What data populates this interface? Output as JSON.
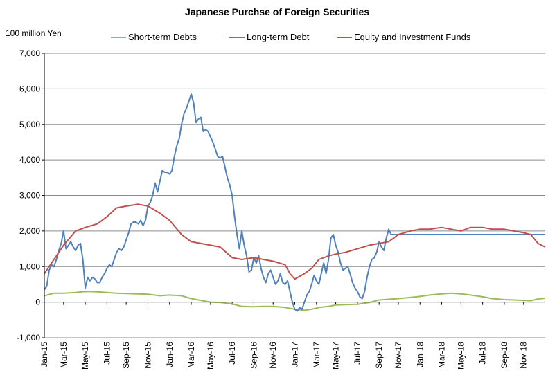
{
  "chart_data": {
    "type": "line",
    "title": "Japanese Purchse of Foreign Securities",
    "ylabel": "100 million Yen",
    "xlabel": "",
    "ylim": [
      -1000,
      7000
    ],
    "yticks": [
      -1000,
      0,
      1000,
      2000,
      3000,
      4000,
      5000,
      6000,
      7000
    ],
    "ytick_labels": [
      "-1,000",
      "0",
      "1,000",
      "2,000",
      "3,000",
      "4,000",
      "5,000",
      "6,000",
      "7,000"
    ],
    "grid": true,
    "legend_position": "top",
    "x_unit": "weeks since Jan-15",
    "xlim": [
      0,
      208
    ],
    "xticks": [
      {
        "label": "Jan-15",
        "x": 0
      },
      {
        "label": "Mar-15",
        "x": 8
      },
      {
        "label": "May-15",
        "x": 17
      },
      {
        "label": "Jul-15",
        "x": 26
      },
      {
        "label": "Sep-15",
        "x": 34
      },
      {
        "label": "Nov-15",
        "x": 43
      },
      {
        "label": "Jan-16",
        "x": 52
      },
      {
        "label": "Mar-16",
        "x": 61
      },
      {
        "label": "May-16",
        "x": 69
      },
      {
        "label": "Jul-16",
        "x": 78
      },
      {
        "label": "Sep-16",
        "x": 87
      },
      {
        "label": "Nov-16",
        "x": 95
      },
      {
        "label": "Jan-17",
        "x": 104
      },
      {
        "label": "Mar-17",
        "x": 113
      },
      {
        "label": "May-17",
        "x": 121
      },
      {
        "label": "Jul-17",
        "x": 130
      },
      {
        "label": "Sep-17",
        "x": 139
      },
      {
        "label": "Nov-17",
        "x": 147
      },
      {
        "label": "Jan-18",
        "x": 156
      },
      {
        "label": "Mar-18",
        "x": 165
      },
      {
        "label": "May-18",
        "x": 173
      },
      {
        "label": "Jul-18",
        "x": 182
      },
      {
        "label": "Sep-18",
        "x": 191
      },
      {
        "label": "Nov-18",
        "x": 199
      }
    ],
    "series": [
      {
        "name": "Short-term Debts",
        "color": "#9bbb59",
        "points": [
          [
            0,
            180
          ],
          [
            4,
            250
          ],
          [
            8,
            250
          ],
          [
            13,
            270
          ],
          [
            17,
            300
          ],
          [
            22,
            290
          ],
          [
            26,
            270
          ],
          [
            30,
            250
          ],
          [
            34,
            240
          ],
          [
            39,
            230
          ],
          [
            43,
            220
          ],
          [
            48,
            180
          ],
          [
            52,
            200
          ],
          [
            57,
            180
          ],
          [
            61,
            100
          ],
          [
            65,
            50
          ],
          [
            69,
            0
          ],
          [
            73,
            -10
          ],
          [
            78,
            -50
          ],
          [
            82,
            -120
          ],
          [
            87,
            -130
          ],
          [
            91,
            -120
          ],
          [
            95,
            -120
          ],
          [
            100,
            -150
          ],
          [
            104,
            -200
          ],
          [
            108,
            -230
          ],
          [
            111,
            -200
          ],
          [
            114,
            -150
          ],
          [
            118,
            -120
          ],
          [
            121,
            -80
          ],
          [
            125,
            -70
          ],
          [
            130,
            -60
          ],
          [
            135,
            -10
          ],
          [
            139,
            60
          ],
          [
            143,
            80
          ],
          [
            147,
            100
          ],
          [
            152,
            130
          ],
          [
            156,
            160
          ],
          [
            160,
            200
          ],
          [
            165,
            230
          ],
          [
            169,
            250
          ],
          [
            173,
            230
          ],
          [
            177,
            200
          ],
          [
            182,
            150
          ],
          [
            186,
            100
          ],
          [
            191,
            70
          ],
          [
            195,
            60
          ],
          [
            199,
            50
          ],
          [
            202,
            40
          ],
          [
            205,
            90
          ],
          [
            208,
            110
          ]
        ]
      },
      {
        "name": "Long-term Debt",
        "color": "#4f81bd",
        "points": [
          [
            0,
            350
          ],
          [
            1,
            450
          ],
          [
            2,
            900
          ],
          [
            3,
            1050
          ],
          [
            4,
            1000
          ],
          [
            5,
            1200
          ],
          [
            6,
            1450
          ],
          [
            7,
            1650
          ],
          [
            8,
            2000
          ],
          [
            9,
            1500
          ],
          [
            10,
            1600
          ],
          [
            11,
            1700
          ],
          [
            12,
            1550
          ],
          [
            13,
            1450
          ],
          [
            14,
            1600
          ],
          [
            15,
            1650
          ],
          [
            16,
            1200
          ],
          [
            17,
            400
          ],
          [
            18,
            700
          ],
          [
            19,
            600
          ],
          [
            20,
            700
          ],
          [
            21,
            650
          ],
          [
            22,
            550
          ],
          [
            23,
            550
          ],
          [
            24,
            700
          ],
          [
            25,
            800
          ],
          [
            26,
            950
          ],
          [
            27,
            1050
          ],
          [
            28,
            1000
          ],
          [
            29,
            1200
          ],
          [
            30,
            1400
          ],
          [
            31,
            1500
          ],
          [
            32,
            1450
          ],
          [
            33,
            1550
          ],
          [
            34,
            1750
          ],
          [
            35,
            1950
          ],
          [
            36,
            2200
          ],
          [
            37,
            2250
          ],
          [
            38,
            2250
          ],
          [
            39,
            2200
          ],
          [
            40,
            2300
          ],
          [
            41,
            2150
          ],
          [
            42,
            2300
          ],
          [
            43,
            2700
          ],
          [
            44,
            2800
          ],
          [
            45,
            3000
          ],
          [
            46,
            3350
          ],
          [
            47,
            3100
          ],
          [
            48,
            3400
          ],
          [
            49,
            3700
          ],
          [
            50,
            3650
          ],
          [
            51,
            3650
          ],
          [
            52,
            3600
          ],
          [
            53,
            3700
          ],
          [
            54,
            4100
          ],
          [
            55,
            4400
          ],
          [
            56,
            4600
          ],
          [
            57,
            5000
          ],
          [
            58,
            5300
          ],
          [
            59,
            5450
          ],
          [
            60,
            5650
          ],
          [
            61,
            5850
          ],
          [
            62,
            5600
          ],
          [
            63,
            5050
          ],
          [
            64,
            5150
          ],
          [
            65,
            5200
          ],
          [
            66,
            4800
          ],
          [
            67,
            4850
          ],
          [
            68,
            4800
          ],
          [
            69,
            4650
          ],
          [
            70,
            4500
          ],
          [
            71,
            4300
          ],
          [
            72,
            4100
          ],
          [
            73,
            4050
          ],
          [
            74,
            4100
          ],
          [
            75,
            3800
          ],
          [
            76,
            3500
          ],
          [
            77,
            3300
          ],
          [
            78,
            3000
          ],
          [
            79,
            2400
          ],
          [
            80,
            1900
          ],
          [
            81,
            1500
          ],
          [
            82,
            2000
          ],
          [
            83,
            1600
          ],
          [
            84,
            1300
          ],
          [
            85,
            850
          ],
          [
            86,
            900
          ],
          [
            87,
            1250
          ],
          [
            88,
            1100
          ],
          [
            89,
            1300
          ],
          [
            90,
            950
          ],
          [
            91,
            700
          ],
          [
            92,
            550
          ],
          [
            93,
            800
          ],
          [
            94,
            900
          ],
          [
            95,
            700
          ],
          [
            96,
            500
          ],
          [
            97,
            600
          ],
          [
            98,
            800
          ],
          [
            99,
            550
          ],
          [
            100,
            500
          ],
          [
            101,
            600
          ],
          [
            102,
            300
          ],
          [
            103,
            0
          ],
          [
            104,
            -200
          ],
          [
            105,
            -250
          ],
          [
            106,
            -150
          ],
          [
            107,
            -200
          ],
          [
            108,
            0
          ],
          [
            109,
            200
          ],
          [
            110,
            300
          ],
          [
            111,
            500
          ],
          [
            112,
            750
          ],
          [
            113,
            600
          ],
          [
            114,
            500
          ],
          [
            115,
            800
          ],
          [
            116,
            1100
          ],
          [
            117,
            800
          ],
          [
            118,
            1200
          ],
          [
            119,
            1800
          ],
          [
            120,
            1900
          ],
          [
            121,
            1600
          ],
          [
            122,
            1400
          ],
          [
            123,
            1100
          ],
          [
            124,
            900
          ],
          [
            125,
            950
          ],
          [
            126,
            1000
          ],
          [
            127,
            800
          ],
          [
            128,
            550
          ],
          [
            129,
            400
          ],
          [
            130,
            300
          ],
          [
            131,
            150
          ],
          [
            132,
            100
          ],
          [
            133,
            300
          ],
          [
            134,
            700
          ],
          [
            135,
            1000
          ],
          [
            136,
            1200
          ],
          [
            137,
            1250
          ],
          [
            138,
            1400
          ],
          [
            139,
            1700
          ],
          [
            140,
            1550
          ],
          [
            141,
            1450
          ],
          [
            142,
            1800
          ],
          [
            143,
            2050
          ],
          [
            144,
            1900
          ],
          [
            208,
            1900
          ]
        ]
      },
      {
        "name": "Equity and Investment Funds",
        "color": "#c0504d",
        "points": [
          [
            0,
            800
          ],
          [
            4,
            1200
          ],
          [
            8,
            1600
          ],
          [
            13,
            2000
          ],
          [
            17,
            2100
          ],
          [
            22,
            2200
          ],
          [
            26,
            2400
          ],
          [
            30,
            2650
          ],
          [
            34,
            2700
          ],
          [
            39,
            2750
          ],
          [
            43,
            2700
          ],
          [
            48,
            2500
          ],
          [
            52,
            2300
          ],
          [
            57,
            1900
          ],
          [
            61,
            1700
          ],
          [
            65,
            1650
          ],
          [
            69,
            1600
          ],
          [
            73,
            1550
          ],
          [
            78,
            1250
          ],
          [
            82,
            1200
          ],
          [
            87,
            1250
          ],
          [
            91,
            1200
          ],
          [
            95,
            1150
          ],
          [
            100,
            1050
          ],
          [
            102,
            800
          ],
          [
            104,
            650
          ],
          [
            108,
            800
          ],
          [
            111,
            950
          ],
          [
            114,
            1200
          ],
          [
            118,
            1300
          ],
          [
            121,
            1350
          ],
          [
            125,
            1400
          ],
          [
            130,
            1500
          ],
          [
            135,
            1600
          ],
          [
            139,
            1650
          ],
          [
            143,
            1700
          ],
          [
            147,
            1900
          ],
          [
            152,
            2000
          ],
          [
            156,
            2050
          ],
          [
            160,
            2050
          ],
          [
            165,
            2100
          ],
          [
            169,
            2050
          ],
          [
            173,
            2000
          ],
          [
            177,
            2100
          ],
          [
            182,
            2100
          ],
          [
            186,
            2050
          ],
          [
            191,
            2050
          ],
          [
            195,
            2000
          ],
          [
            199,
            1950
          ],
          [
            202,
            1900
          ],
          [
            205,
            1650
          ],
          [
            208,
            1550
          ]
        ]
      }
    ]
  }
}
